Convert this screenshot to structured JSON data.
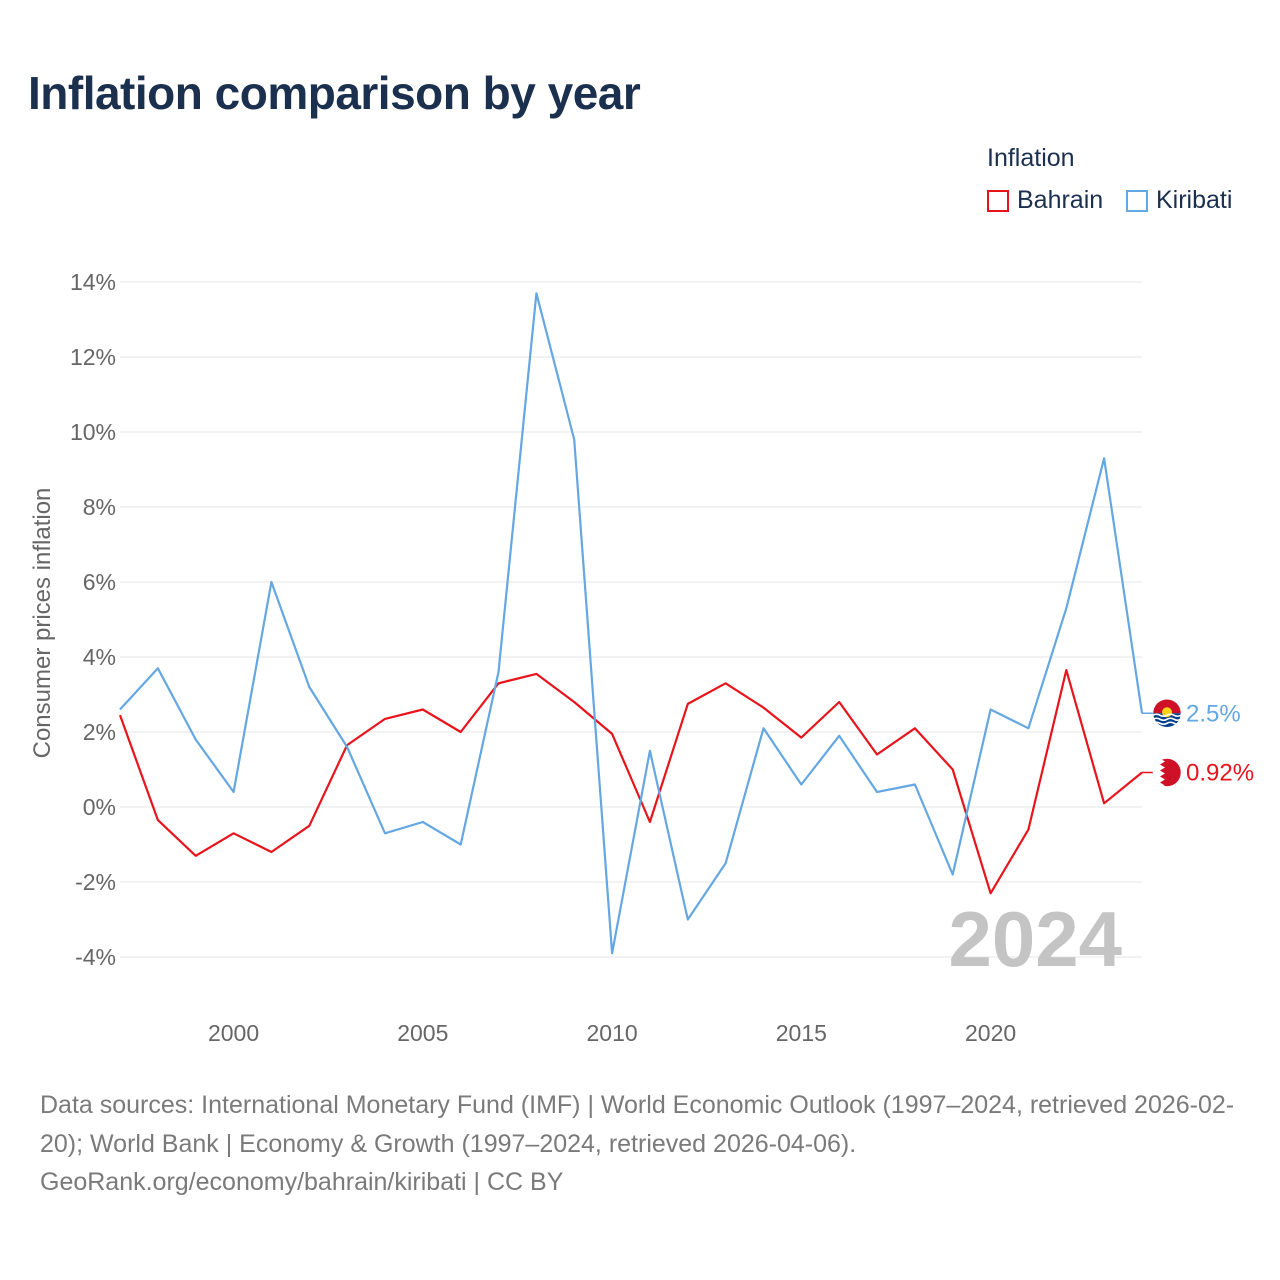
{
  "title": "Inflation comparison by year",
  "legend": {
    "title": "Inflation",
    "items": [
      {
        "label": "Bahrain",
        "color": "#e8141c"
      },
      {
        "label": "Kiribati",
        "color": "#64a7e2"
      }
    ]
  },
  "chart_data": {
    "type": "line",
    "ylabel": "Consumer prices inflation",
    "ylim": [
      -4,
      14
    ],
    "yticks": [
      -4,
      -2,
      0,
      2,
      4,
      6,
      8,
      10,
      12,
      14
    ],
    "ytick_labels": [
      "-4%",
      "-2%",
      "0%",
      "2%",
      "4%",
      "6%",
      "8%",
      "10%",
      "12%",
      "14%"
    ],
    "xlim": [
      1997,
      2024
    ],
    "xticks": [
      2000,
      2005,
      2010,
      2015,
      2020
    ],
    "xtick_labels": [
      "2000",
      "2005",
      "2010",
      "2015",
      "2020"
    ],
    "grid": true,
    "current_year_label": "2024",
    "x": [
      1997,
      1998,
      1999,
      2000,
      2001,
      2002,
      2003,
      2004,
      2005,
      2006,
      2007,
      2008,
      2009,
      2010,
      2011,
      2012,
      2013,
      2014,
      2015,
      2016,
      2017,
      2018,
      2019,
      2020,
      2021,
      2022,
      2023,
      2024
    ],
    "series": [
      {
        "name": "Bahrain",
        "color": "#e8141c",
        "end_label": "0.92%",
        "values": [
          2.45,
          -0.35,
          -1.3,
          -0.7,
          -1.2,
          -0.5,
          1.65,
          2.35,
          2.6,
          2.0,
          3.3,
          3.55,
          2.8,
          1.95,
          -0.4,
          2.75,
          3.3,
          2.65,
          1.85,
          2.8,
          1.4,
          2.1,
          1.0,
          -2.3,
          -0.6,
          3.65,
          0.1,
          0.92
        ]
      },
      {
        "name": "Kiribati",
        "color": "#64a7e2",
        "end_label": "2.5%",
        "values": [
          2.6,
          3.7,
          1.8,
          0.4,
          6.0,
          3.2,
          1.6,
          -0.7,
          -0.4,
          -1.0,
          3.6,
          13.7,
          9.8,
          -3.9,
          1.5,
          -3.0,
          -1.5,
          2.1,
          0.6,
          1.9,
          0.4,
          0.6,
          -1.8,
          2.6,
          2.1,
          5.3,
          9.3,
          2.5
        ]
      }
    ]
  },
  "source": {
    "line1": "Data sources: International Monetary Fund (IMF) | World Economic Outlook (1997–2024, retrieved 2026-02-20); World Bank | Economy & Growth (1997–2024, retrieved 2026-04-06).",
    "line2": "GeoRank.org/economy/bahrain/kiribati | CC BY"
  }
}
